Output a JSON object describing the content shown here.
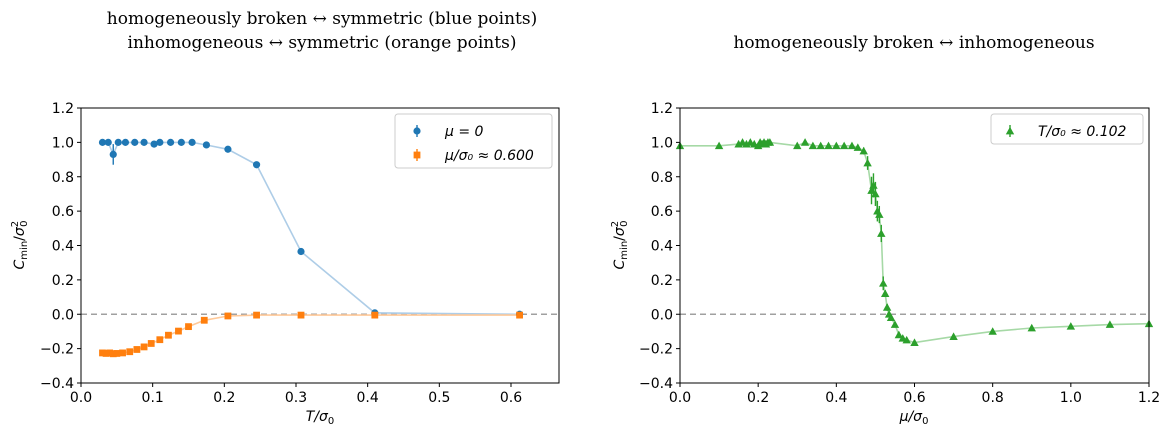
{
  "chart_data": [
    {
      "type": "line",
      "title": [
        "homogeneously broken ↔ symmetric (blue points)",
        "inhomogeneous ↔ symmetric (orange points)"
      ],
      "xlabel": "T/σ₀",
      "ylabel": "C_min/σ₀²",
      "xlim": [
        0.0,
        0.667
      ],
      "ylim": [
        -0.4,
        1.2
      ],
      "xticks": [
        "0.0",
        "0.1",
        "0.2",
        "0.3",
        "0.4",
        "0.5",
        "0.6"
      ],
      "yticks": [
        "−0.4",
        "−0.2",
        "0.0",
        "0.2",
        "0.4",
        "0.6",
        "0.8",
        "1.0",
        "1.2"
      ],
      "grid": false,
      "legend": "top-right",
      "series": [
        {
          "name": "μ = 0",
          "marker": "circle",
          "color": "#1f77b4",
          "line_color": "#aecde7",
          "x": [
            0.03,
            0.038,
            0.045,
            0.052,
            0.062,
            0.075,
            0.088,
            0.102,
            0.11,
            0.125,
            0.14,
            0.155,
            0.175,
            0.205,
            0.245,
            0.307,
            0.41,
            0.612
          ],
          "y": [
            1.0,
            1.0,
            0.93,
            1.0,
            1.0,
            1.0,
            1.0,
            0.99,
            1.0,
            1.0,
            1.0,
            1.0,
            0.985,
            0.96,
            0.87,
            0.365,
            0.008,
            0.0
          ],
          "err": [
            0.012,
            0.012,
            0.06,
            0.012,
            0.008,
            0.008,
            0.008,
            0.01,
            0.008,
            0.008,
            0.008,
            0.008,
            0.01,
            0.01,
            0.01,
            0.01,
            0.008,
            0.005
          ]
        },
        {
          "name": "μ/σ₀ ≈ 0.600",
          "marker": "square",
          "color": "#ff7f0e",
          "line_color": "#ffc999",
          "x": [
            0.03,
            0.035,
            0.04,
            0.045,
            0.05,
            0.058,
            0.068,
            0.078,
            0.088,
            0.098,
            0.11,
            0.122,
            0.136,
            0.15,
            0.172,
            0.205,
            0.245,
            0.307,
            0.41,
            0.612
          ],
          "y": [
            -0.225,
            -0.228,
            -0.225,
            -0.23,
            -0.228,
            -0.225,
            -0.218,
            -0.205,
            -0.19,
            -0.17,
            -0.148,
            -0.122,
            -0.098,
            -0.072,
            -0.035,
            -0.01,
            -0.005,
            -0.005,
            -0.005,
            -0.005
          ],
          "err": [
            0.01,
            0.01,
            0.01,
            0.01,
            0.01,
            0.01,
            0.01,
            0.01,
            0.01,
            0.01,
            0.008,
            0.008,
            0.008,
            0.008,
            0.008,
            0.006,
            0.005,
            0.005,
            0.005,
            0.005
          ]
        }
      ]
    },
    {
      "type": "line",
      "title": [
        "homogeneously broken ↔ inhomogeneous"
      ],
      "xlabel": "μ/σ₀",
      "ylabel": "C_min/σ₀²",
      "xlim": [
        0.0,
        1.2
      ],
      "ylim": [
        -0.4,
        1.2
      ],
      "xticks": [
        "0.0",
        "0.2",
        "0.4",
        "0.6",
        "0.8",
        "1.0",
        "1.2"
      ],
      "yticks": [
        "−0.4",
        "−0.2",
        "0.0",
        "0.2",
        "0.4",
        "0.6",
        "0.8",
        "1.0",
        "1.2"
      ],
      "grid": false,
      "legend": "top-right",
      "series": [
        {
          "name": "T/σ₀ ≈ 0.102",
          "marker": "triangle",
          "color": "#2ca02c",
          "line_color": "#a6d9a6",
          "x": [
            0.0,
            0.1,
            0.15,
            0.16,
            0.17,
            0.18,
            0.19,
            0.2,
            0.205,
            0.21,
            0.215,
            0.22,
            0.225,
            0.23,
            0.3,
            0.32,
            0.34,
            0.36,
            0.38,
            0.4,
            0.42,
            0.44,
            0.455,
            0.47,
            0.48,
            0.49,
            0.495,
            0.5,
            0.505,
            0.51,
            0.515,
            0.52,
            0.525,
            0.53,
            0.535,
            0.54,
            0.55,
            0.56,
            0.57,
            0.58,
            0.6,
            0.7,
            0.8,
            0.9,
            1.0,
            1.1,
            1.2
          ],
          "y": [
            0.98,
            0.98,
            0.99,
            1.0,
            0.99,
            1.0,
            0.99,
            0.98,
            1.0,
            0.99,
            1.0,
            0.99,
            1.0,
            1.0,
            0.98,
            1.0,
            0.98,
            0.98,
            0.98,
            0.98,
            0.98,
            0.98,
            0.97,
            0.95,
            0.88,
            0.72,
            0.75,
            0.7,
            0.6,
            0.58,
            0.47,
            0.18,
            0.12,
            0.04,
            0.0,
            -0.02,
            -0.06,
            -0.12,
            -0.14,
            -0.15,
            -0.165,
            -0.13,
            -0.1,
            -0.08,
            -0.07,
            -0.06,
            -0.055
          ],
          "err": [
            0.01,
            0.01,
            0.01,
            0.01,
            0.01,
            0.01,
            0.01,
            0.01,
            0.01,
            0.01,
            0.01,
            0.01,
            0.01,
            0.01,
            0.01,
            0.01,
            0.01,
            0.01,
            0.01,
            0.01,
            0.01,
            0.01,
            0.01,
            0.02,
            0.04,
            0.08,
            0.07,
            0.07,
            0.06,
            0.05,
            0.05,
            0.04,
            0.02,
            0.02,
            0.015,
            0.015,
            0.01,
            0.01,
            0.01,
            0.01,
            0.01,
            0.01,
            0.01,
            0.01,
            0.01,
            0.01,
            0.01
          ]
        }
      ]
    }
  ]
}
